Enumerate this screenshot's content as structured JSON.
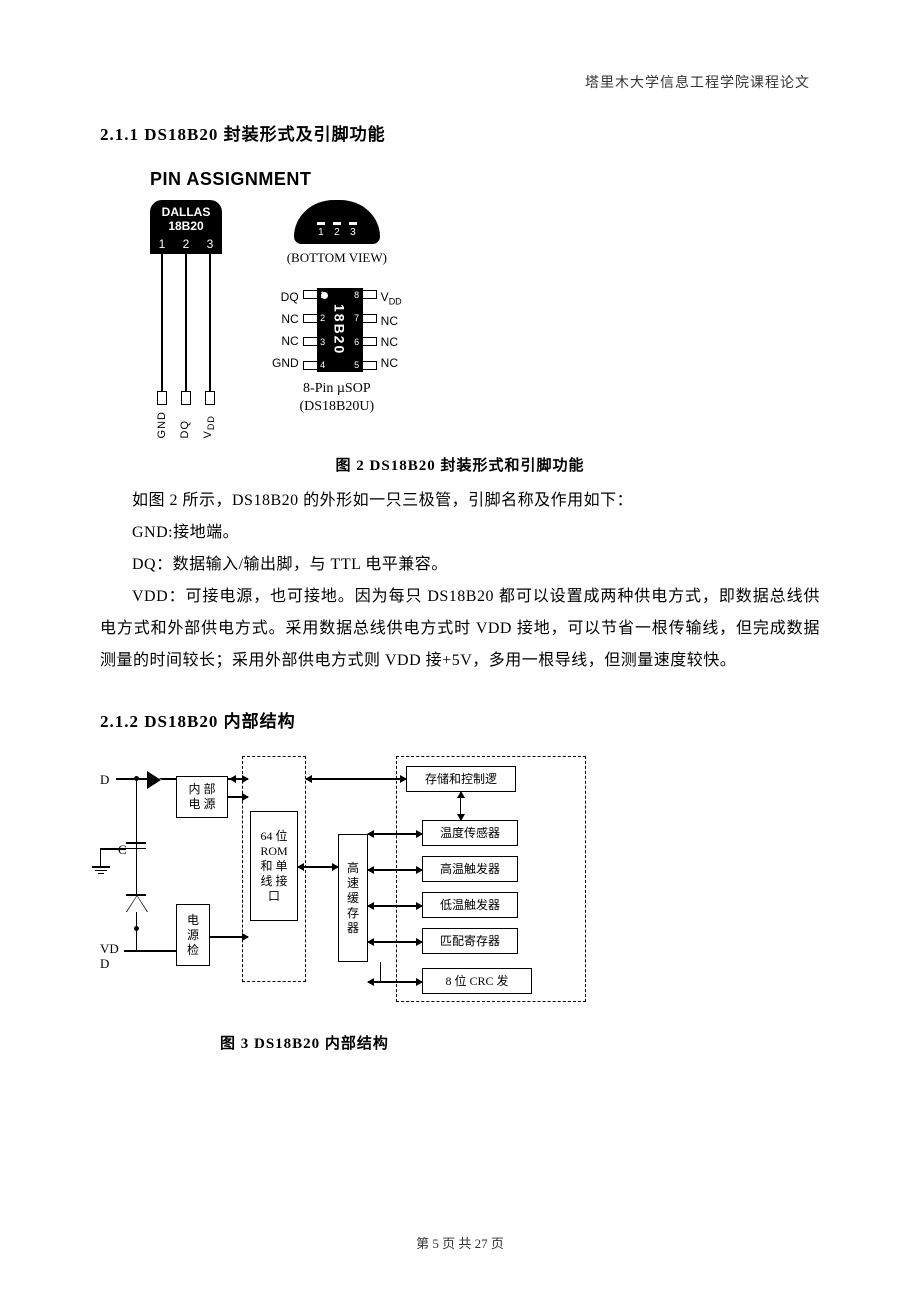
{
  "header": {
    "institution": "塔里木大学信息工程学院课程论文"
  },
  "section1": {
    "number": "2.1.1",
    "title": "DS18B20 封装形式及引脚功能"
  },
  "fig2": {
    "pin_assignment_title": "PIN ASSIGNMENT",
    "to92": {
      "brand": "DALLAS",
      "part": "18B20",
      "pin_nums": [
        "1",
        "2",
        "3"
      ],
      "pin_labels": [
        "GND",
        "DQ",
        "VDD"
      ]
    },
    "bottom_view": {
      "caption": "(BOTTOM VIEW)",
      "nums": [
        "1",
        "2",
        "3"
      ]
    },
    "usop": {
      "left_labels": [
        "DQ",
        "NC",
        "NC",
        "GND"
      ],
      "left_nums": [
        "1",
        "2",
        "3",
        "4"
      ],
      "body_label": "18B20",
      "right_nums": [
        "8",
        "7",
        "6",
        "5"
      ],
      "right_labels": [
        "VDD",
        "NC",
        "NC",
        "NC"
      ],
      "caption_line1": "8-Pin µSOP",
      "caption_line2": "(DS18B20U)"
    },
    "caption": "图 2 DS18B20 封装形式和引脚功能"
  },
  "paragraphs": {
    "p1": "如图 2 所示，DS18B20 的外形如一只三极管，引脚名称及作用如下：",
    "p2": "GND:接地端。",
    "p3": "DQ：数据输入/输出脚，与 TTL 电平兼容。",
    "p4": "VDD：可接电源，也可接地。因为每只 DS18B20 都可以设置成两种供电方式，即数据总线供电方式和外部供电方式。采用数据总线供电方式时 VDD 接地，可以节省一根传输线，但完成数据测量的时间较长；采用外部供电方式则 VDD 接+5V，多用一根导线，但测量速度较快。"
  },
  "section2": {
    "number": "2.1.2",
    "title": "DS18B20 内部结构"
  },
  "fig3": {
    "caption": "图 3 DS18B20 内部结构",
    "labels": {
      "D": "D",
      "C": "C",
      "VDD": "VD\nD",
      "inner_power": "内 部\n电 源",
      "power_detect": "电\n源\n检",
      "rom_block": "64 位\nROM\n和 单\n线 接\n口",
      "cache": "高\n速\n缓\n存\n器",
      "storage_logic": "存储和控制逻",
      "temp_sensor": "温度传感器",
      "high_trigger": "高温触发器",
      "low_trigger": "低温触发器",
      "match_reg": "匹配寄存器",
      "crc": "8 位 CRC 发"
    }
  },
  "footer": {
    "page_current": "5",
    "page_total": "27",
    "page_prefix": "第",
    "page_mid": "页 共",
    "page_suffix": "页"
  }
}
